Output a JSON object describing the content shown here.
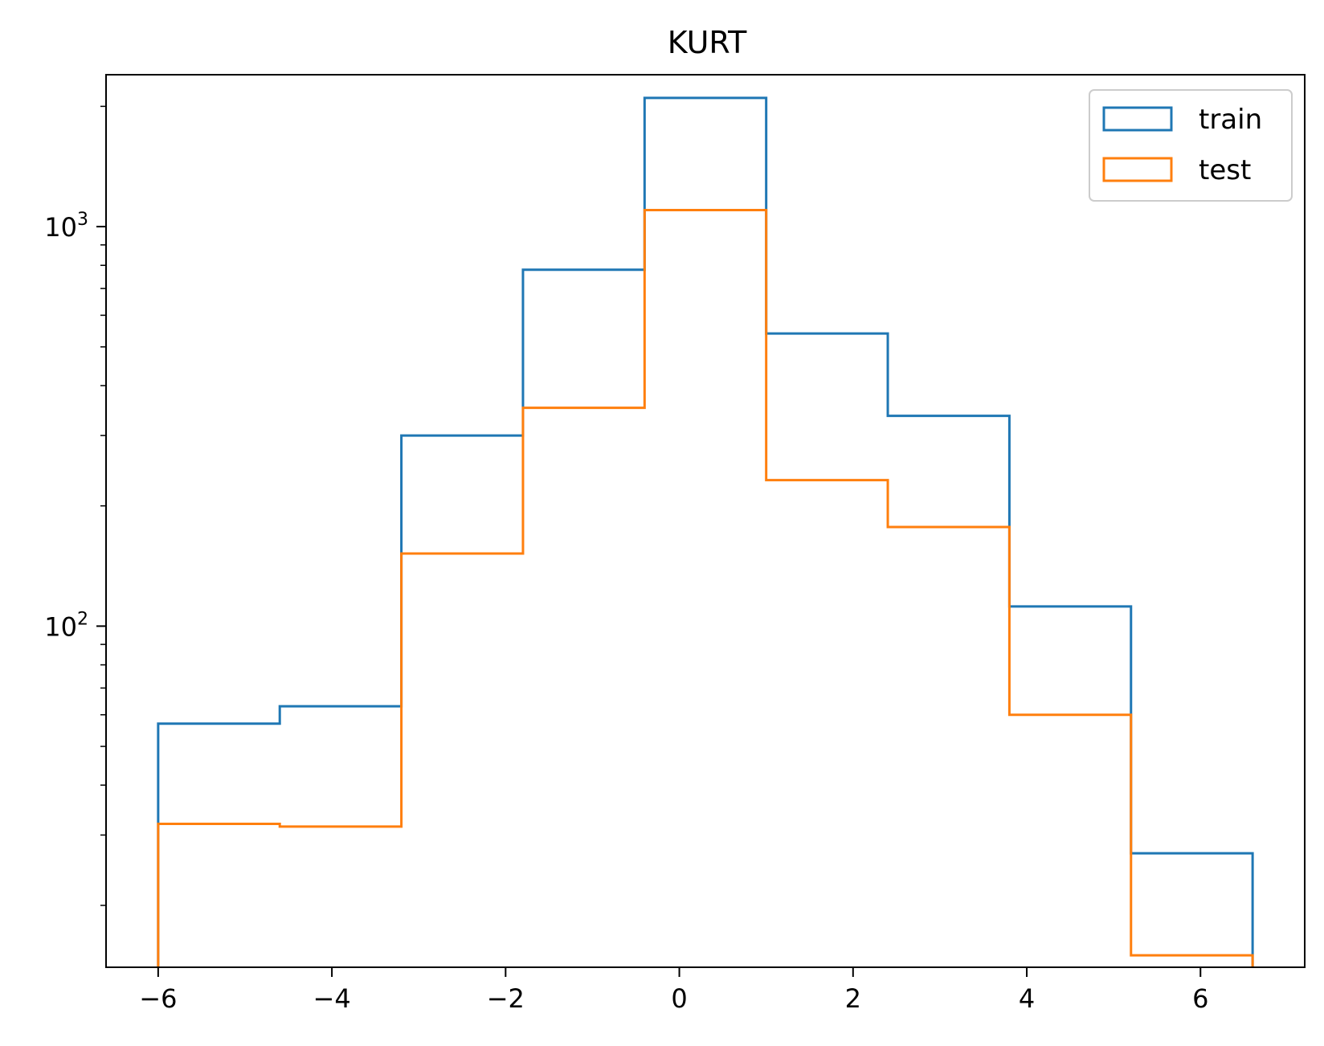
{
  "chart_data": {
    "type": "histogram",
    "title": "KURT",
    "xlabel": "",
    "ylabel": "",
    "x_scale": "linear",
    "y_scale": "log",
    "xlim": [
      -6.6,
      7.2
    ],
    "ylim": [
      14,
      2400
    ],
    "bin_edges": [
      -6.0,
      -4.6,
      -3.2,
      -1.8,
      -0.4,
      1.0,
      2.4,
      3.8,
      5.2,
      6.6
    ],
    "series": [
      {
        "name": "train",
        "color": "#1f77b4",
        "values": [
          57,
          63,
          300,
          780,
          2100,
          540,
          336,
          112,
          27
        ]
      },
      {
        "name": "test",
        "color": "#ff7f0e",
        "values": [
          32,
          31.5,
          152,
          352,
          1100,
          232,
          177,
          60,
          15
        ]
      }
    ],
    "x_ticks": [
      {
        "value": -6,
        "label": "−6"
      },
      {
        "value": -4,
        "label": "−4"
      },
      {
        "value": -2,
        "label": "−2"
      },
      {
        "value": 0,
        "label": "0"
      },
      {
        "value": 2,
        "label": "2"
      },
      {
        "value": 4,
        "label": "4"
      },
      {
        "value": 6,
        "label": "6"
      }
    ],
    "y_major_ticks": [
      {
        "value": 100,
        "base": "10",
        "exp": "2"
      },
      {
        "value": 1000,
        "base": "10",
        "exp": "3"
      }
    ],
    "y_minor_ticks": [
      20,
      30,
      40,
      50,
      60,
      70,
      80,
      90,
      200,
      300,
      400,
      500,
      600,
      700,
      800,
      900,
      2000
    ],
    "grid": false,
    "legend_position": "top-right"
  }
}
